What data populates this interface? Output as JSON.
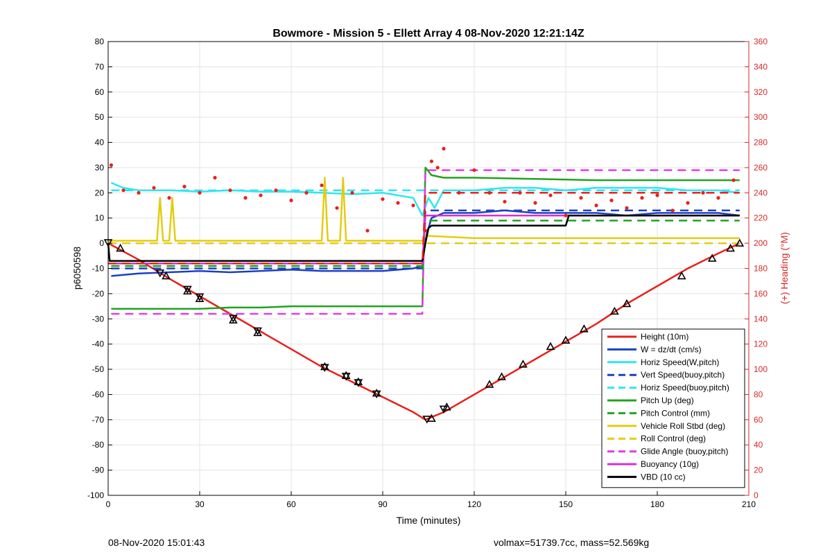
{
  "chart_data": {
    "type": "line",
    "title": "Bowmore - Mission 5 - Ellett Array 4 08-Nov-2020 12:21:14Z",
    "xlabel": "Time (minutes)",
    "ylabel": "p6050598",
    "y2label": "(+) Heading (°M)",
    "xlim": [
      0,
      210
    ],
    "ylim": [
      -100,
      80
    ],
    "y2lim": [
      0,
      360
    ],
    "xticks": [
      0,
      30,
      60,
      90,
      120,
      150,
      180,
      210
    ],
    "yticks": [
      80,
      70,
      60,
      50,
      40,
      30,
      20,
      10,
      0,
      -10,
      -20,
      -30,
      -40,
      -50,
      -60,
      -70,
      -80,
      -90,
      -100
    ],
    "y2ticks": [
      360,
      340,
      320,
      300,
      280,
      260,
      240,
      220,
      200,
      180,
      160,
      140,
      120,
      100,
      80,
      60,
      40,
      20,
      0
    ],
    "grid": true,
    "legend_position": "bottom-right",
    "colors": {
      "axis2": "#d62728",
      "footer": "#000000"
    },
    "series": [
      {
        "name": "Height (10m)",
        "color": "#e8201c",
        "style": "solid",
        "x": [
          0,
          10,
          20,
          30,
          40,
          50,
          60,
          70,
          80,
          90,
          100,
          104,
          106,
          110,
          120,
          130,
          140,
          150,
          160,
          170,
          180,
          190,
          200,
          207
        ],
        "y": [
          0,
          -6.5,
          -14,
          -21,
          -28,
          -35,
          -42,
          -49,
          -55,
          -61,
          -67,
          -70,
          -69,
          -67,
          -60,
          -53,
          -46,
          -39,
          -32,
          -24,
          -17,
          -10,
          -4,
          0
        ]
      },
      {
        "name": "W = dz/dt (cm/s)",
        "color": "#1c3fc2",
        "style": "solid",
        "x": [
          1,
          10,
          20,
          30,
          40,
          50,
          60,
          70,
          80,
          90,
          100,
          103,
          104,
          106,
          110,
          120,
          130,
          140,
          150,
          160,
          170,
          180,
          190,
          200,
          207
        ],
        "y": [
          -13,
          -12,
          -11.5,
          -11,
          -11.5,
          -11,
          -10.5,
          -11,
          -11,
          -11,
          -10,
          -9,
          2,
          10,
          12,
          12,
          13,
          12,
          12,
          12,
          11,
          12,
          12,
          12,
          11
        ]
      },
      {
        "name": "Horiz Speed(W,pitch)",
        "color": "#2ee6ef",
        "style": "solid",
        "x": [
          1,
          5,
          10,
          20,
          30,
          40,
          50,
          60,
          70,
          80,
          90,
          100,
          103,
          105,
          107,
          110,
          120,
          130,
          140,
          150,
          160,
          170,
          180,
          190,
          200,
          207
        ],
        "y": [
          24,
          22,
          21,
          21,
          20.5,
          21,
          20.5,
          20.5,
          20,
          19.5,
          20,
          18,
          11,
          18,
          14,
          21,
          21,
          22,
          22,
          21,
          22,
          22,
          22,
          21,
          21,
          20
        ]
      },
      {
        "name": "Vert Speed(buoy,pitch)",
        "color": "#1c3fc2",
        "style": "dash",
        "x": [
          1,
          103,
          104,
          207
        ],
        "y": [
          -10,
          -10,
          13,
          13
        ]
      },
      {
        "name": "Horiz Speed(buoy,pitch)",
        "color": "#2ee6ef",
        "style": "dash",
        "x": [
          1,
          103,
          104,
          207
        ],
        "y": [
          21,
          21,
          21,
          21
        ]
      },
      {
        "name": "Pitch Up (deg)",
        "color": "#1fa31f",
        "style": "solid",
        "x": [
          1,
          10,
          20,
          30,
          40,
          50,
          60,
          70,
          80,
          90,
          100,
          103,
          104,
          106,
          110,
          120,
          140,
          160,
          180,
          200,
          207
        ],
        "y": [
          -26,
          -26,
          -26,
          -26,
          -25.5,
          -25.5,
          -25,
          -25,
          -25,
          -25,
          -25,
          -25,
          30,
          27,
          26,
          26,
          25.5,
          25,
          25,
          25,
          25
        ]
      },
      {
        "name": "Pitch Control (mm)",
        "color": "#1fa31f",
        "style": "dash",
        "x": [
          1,
          103,
          104,
          207
        ],
        "y": [
          -9,
          -9,
          9,
          9
        ]
      },
      {
        "name": "Vehicle Roll Stbd (deg)",
        "color": "#e3cc10",
        "style": "solid",
        "x": [
          0,
          16,
          17,
          18,
          20,
          21,
          22,
          30,
          70,
          71,
          72,
          76,
          77,
          78,
          103,
          104,
          120,
          150,
          180,
          207
        ],
        "y": [
          1,
          1,
          18,
          1,
          1,
          18,
          1,
          1,
          1,
          26,
          1,
          1,
          26,
          1,
          1,
          3,
          2,
          2,
          2,
          2
        ]
      },
      {
        "name": "Roll Control (deg)",
        "color": "#e3cc10",
        "style": "dash",
        "x": [
          0,
          103,
          104,
          207
        ],
        "y": [
          0,
          0,
          0,
          0
        ]
      },
      {
        "name": "Glide Angle (buoy,pitch)",
        "color": "#e23ce6",
        "style": "dash",
        "x": [
          1,
          103,
          104,
          207
        ],
        "y": [
          -28,
          -28,
          29,
          29
        ]
      },
      {
        "name": "Buoyancy (10g)",
        "color": "#d42fd8",
        "style": "solid",
        "x": [
          1,
          103,
          104,
          207
        ],
        "y": [
          -8,
          -8,
          11,
          11
        ]
      },
      {
        "name": "VBD (10 cc)",
        "color": "#000000",
        "style": "solid",
        "x": [
          0,
          0.5,
          103,
          104,
          105,
          106,
          110,
          150,
          151,
          200,
          207
        ],
        "y": [
          0,
          -7,
          -7,
          0,
          6,
          7,
          7,
          7,
          11,
          11,
          11
        ]
      },
      {
        "name": "",
        "color": "#e8201c",
        "style": "dash",
        "axis": "y2",
        "x": [
          0,
          103,
          104,
          207
        ],
        "y": [
          184,
          184,
          240,
          240
        ]
      },
      {
        "name": "",
        "color": "#e8201c",
        "style": "dots",
        "axis": "y2",
        "x": [
          1,
          5,
          10,
          15,
          20,
          25,
          30,
          35,
          40,
          45,
          50,
          55,
          60,
          65,
          70,
          75,
          80,
          85,
          90,
          95,
          100,
          104,
          106,
          108,
          110,
          115,
          120,
          125,
          130,
          135,
          140,
          145,
          150,
          155,
          160,
          165,
          170,
          175,
          180,
          185,
          190,
          195,
          200,
          205
        ],
        "y": [
          262,
          242,
          240,
          244,
          236,
          245,
          240,
          252,
          242,
          236,
          238,
          242,
          234,
          240,
          246,
          228,
          240,
          210,
          235,
          232,
          230,
          210,
          265,
          260,
          275,
          240,
          258,
          240,
          233,
          240,
          232,
          238,
          222,
          236,
          230,
          234,
          228,
          236,
          238,
          226,
          232,
          240,
          236,
          250
        ]
      }
    ],
    "markers": {
      "down": {
        "x": [
          0,
          17,
          26,
          30,
          41,
          49,
          71,
          78,
          82,
          88,
          104.5,
          110
        ],
        "y": [
          0,
          -12,
          -18.5,
          -21.5,
          -30,
          -35,
          -49.5,
          -53,
          -55.5,
          -60,
          -70,
          -66
        ]
      },
      "up": {
        "x": [
          4,
          19,
          26,
          30,
          41,
          49,
          71,
          78,
          82,
          88,
          106,
          111,
          125,
          129,
          136,
          145,
          150,
          156,
          166,
          170,
          188,
          198,
          204,
          207
        ],
        "y": [
          -2,
          -13,
          -19,
          -22,
          -30.5,
          -35.5,
          -49,
          -52.5,
          -55,
          -59.5,
          -69.5,
          -65,
          -56,
          -53,
          -48,
          -41,
          -38.5,
          -34,
          -27,
          -24,
          -13,
          -6,
          -2,
          0
        ]
      }
    }
  },
  "footer": {
    "timestamp": "08-Nov-2020 15:01:43",
    "stats": "volmax=51739.7cc, mass=52.569kg"
  }
}
